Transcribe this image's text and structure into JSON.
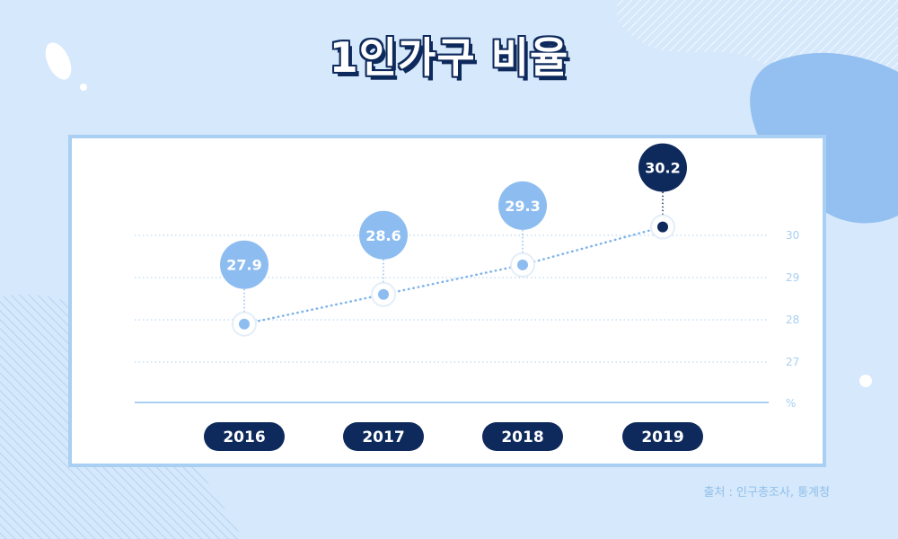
{
  "title": "1인가구 비율",
  "source": "출처 : 인구총조사, 통계청",
  "colors": {
    "background": "#d6e8fb",
    "title_outline": "#0e2a5c",
    "navy": "#0e2a5c",
    "light_blue": "#8dbdf0",
    "grid": "#a9cff3",
    "source_text": "#8fbfeb"
  },
  "chart_data": {
    "type": "line",
    "categories": [
      "2016",
      "2017",
      "2018",
      "2019"
    ],
    "values": [
      27.9,
      28.6,
      29.3,
      30.2
    ],
    "value_labels": [
      "27.9",
      "28.6",
      "29.3",
      "30.2"
    ],
    "y_ticks": [
      "30",
      "29",
      "28",
      "27"
    ],
    "y_unit": "%",
    "ylim": [
      26,
      30
    ],
    "grid": true,
    "highlight_last": true
  }
}
